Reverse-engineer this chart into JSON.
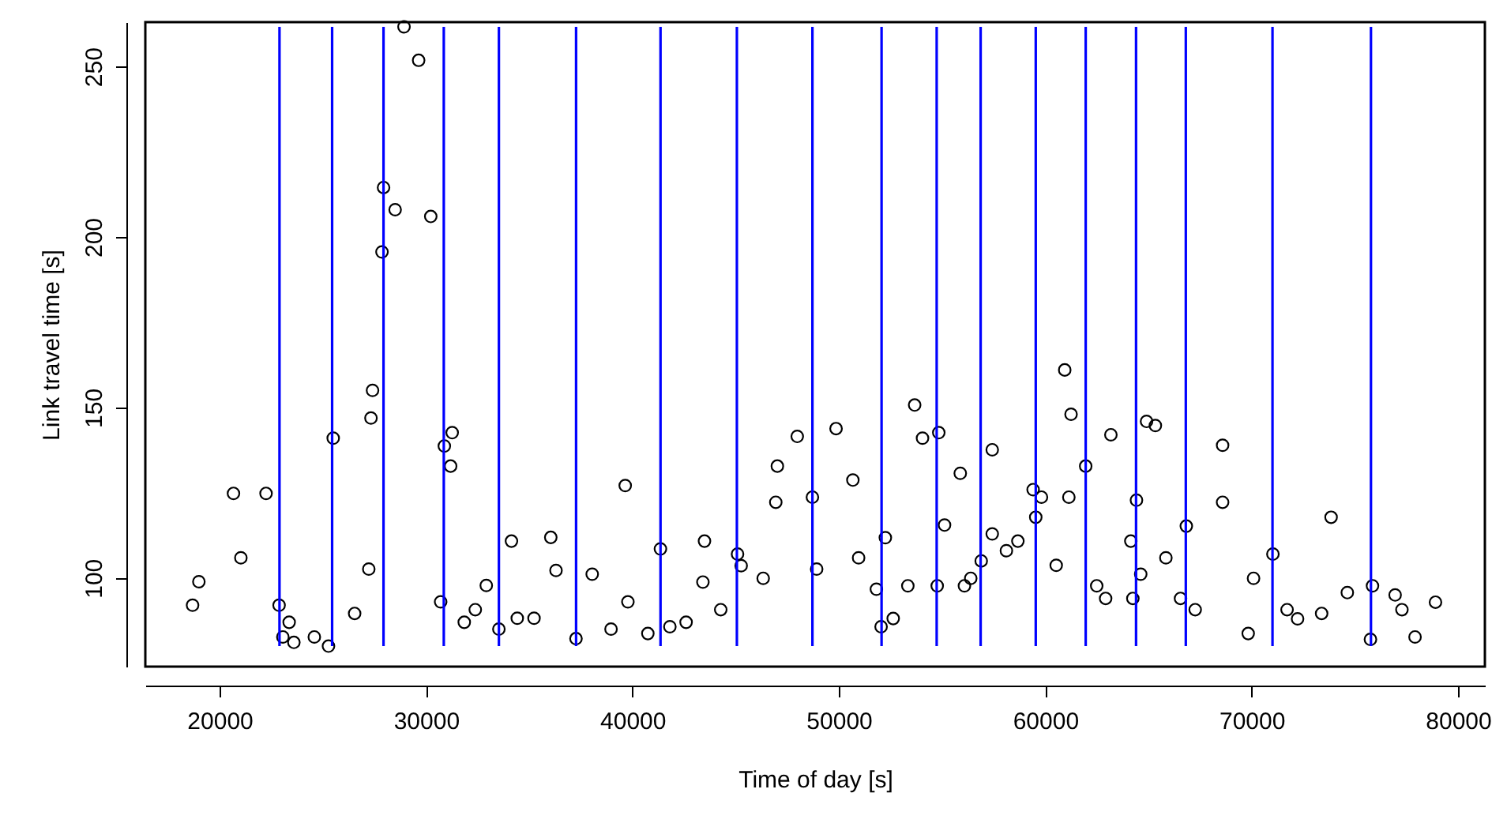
{
  "chart_data": {
    "type": "scatter",
    "xlabel": "Time of day [s]",
    "ylabel": "Link travel time [s]",
    "xlim": [
      16400,
      81300
    ],
    "ylim": [
      74,
      263
    ],
    "xticks": [
      20000,
      30000,
      40000,
      50000,
      60000,
      70000,
      80000
    ],
    "yticks": [
      100,
      150,
      200,
      250
    ],
    "grid": false,
    "marker": "circle",
    "series": [
      {
        "color": "#000000",
        "x": [
          28933,
          29642,
          27942,
          28503,
          30229,
          27866,
          27408,
          27332,
          25503,
          31267,
          30886,
          31191,
          20671,
          22249,
          21029,
          34139,
          36044,
          36297,
          38051,
          27226,
          18994,
          18689,
          22881,
          30709,
          32919,
          32386,
          31852,
          23368,
          26541,
          34420,
          35232,
          33529,
          23063,
          23597,
          24588,
          25274,
          37265,
          38963,
          39650,
          39780,
          40747,
          41357,
          41814,
          42600,
          43491,
          43414,
          44278,
          45092,
          45268,
          46335,
          47021,
          46945,
          47985,
          48720,
          48925,
          49865,
          50680,
          50958,
          51819,
          52253,
          52047,
          52634,
          53343,
          53673,
          54054,
          54842,
          54766,
          55121,
          55883,
          56085,
          56390,
          56898,
          57432,
          57432,
          58118,
          58674,
          59413,
          59817,
          59540,
          60531,
          60944,
          61250,
          61144,
          61960,
          63180,
          62494,
          62926,
          64908,
          65335,
          64420,
          64146,
          64626,
          64245,
          65845,
          66835,
          66554,
          67265,
          68593,
          68593,
          69833,
          70092,
          71030,
          71716,
          72225,
          73391,
          73849,
          74635,
          75855,
          75756,
          76951,
          77281,
          77916,
          78907
        ],
        "values": [
          261.6,
          251.8,
          214.5,
          208,
          206,
          195.6,
          155,
          146.9,
          141,
          142.6,
          138.7,
          132.8,
          124.8,
          124.8,
          105.9,
          110.8,
          111.9,
          102.2,
          101.1,
          102.6,
          98.9,
          92,
          92,
          93,
          97.8,
          90.7,
          87,
          87,
          89.6,
          88.2,
          88.2,
          85,
          82.7,
          81.1,
          82.7,
          80,
          82.2,
          85,
          127.1,
          93,
          83.7,
          108.5,
          85.7,
          87,
          110.8,
          98.8,
          90.7,
          107,
          103.6,
          99.9,
          132.8,
          122.2,
          141.5,
          123.7,
          102.6,
          143.8,
          128.7,
          105.9,
          96.7,
          111.8,
          85.7,
          88.1,
          97.7,
          150.7,
          141,
          142.6,
          97.7,
          115.5,
          130.7,
          97.7,
          99.9,
          105,
          137.6,
          112.9,
          108,
          110.8,
          125.9,
          123.7,
          117.8,
          103.7,
          161,
          148,
          123.7,
          132.8,
          142,
          97.7,
          94,
          145.9,
          144.7,
          122.8,
          110.8,
          101.1,
          94,
          105.9,
          115.2,
          94,
          90.7,
          138.9,
          122.2,
          83.7,
          99.9,
          107,
          90.7,
          88,
          89.6,
          117.8,
          95.7,
          97.7,
          82,
          95,
          90.7,
          82.7,
          92.9
        ]
      }
    ],
    "ref_lines": [
      {
        "axis": "x",
        "value": 22900,
        "color": "#0000ff"
      },
      {
        "axis": "x",
        "value": 25450,
        "color": "#0000ff"
      },
      {
        "axis": "x",
        "value": 27940,
        "color": "#0000ff"
      },
      {
        "axis": "x",
        "value": 30860,
        "color": "#0000ff"
      },
      {
        "axis": "x",
        "value": 33530,
        "color": "#0000ff"
      },
      {
        "axis": "x",
        "value": 37270,
        "color": "#0000ff"
      },
      {
        "axis": "x",
        "value": 41360,
        "color": "#0000ff"
      },
      {
        "axis": "x",
        "value": 45060,
        "color": "#0000ff"
      },
      {
        "axis": "x",
        "value": 48720,
        "color": "#0000ff"
      },
      {
        "axis": "x",
        "value": 52070,
        "color": "#0000ff"
      },
      {
        "axis": "x",
        "value": 54740,
        "color": "#0000ff"
      },
      {
        "axis": "x",
        "value": 56870,
        "color": "#0000ff"
      },
      {
        "axis": "x",
        "value": 59540,
        "color": "#0000ff"
      },
      {
        "axis": "x",
        "value": 61960,
        "color": "#0000ff"
      },
      {
        "axis": "x",
        "value": 64400,
        "color": "#0000ff"
      },
      {
        "axis": "x",
        "value": 66810,
        "color": "#0000ff"
      },
      {
        "axis": "x",
        "value": 71010,
        "color": "#0000ff"
      },
      {
        "axis": "x",
        "value": 75780,
        "color": "#0000ff"
      }
    ]
  }
}
